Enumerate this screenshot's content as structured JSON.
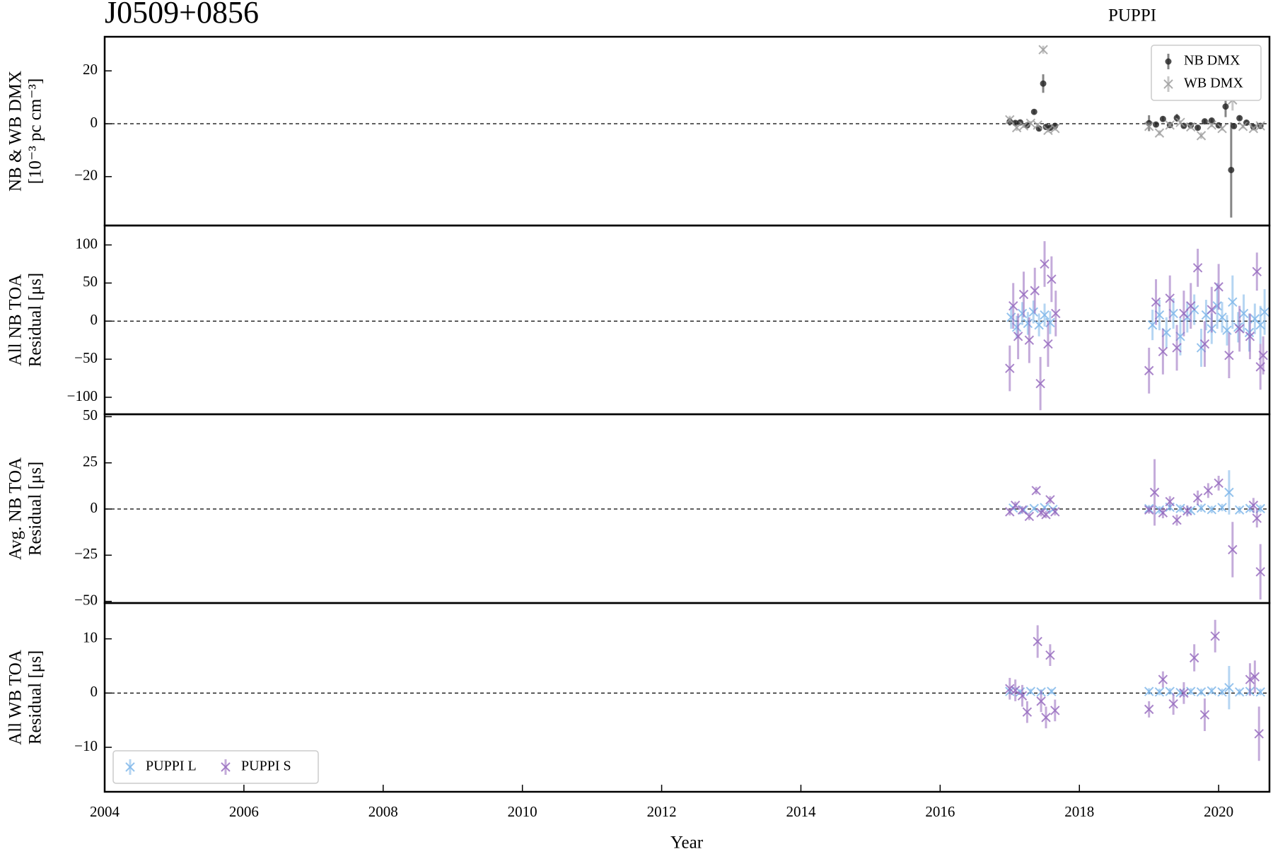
{
  "chart_data": [
    {
      "type": "scatter",
      "title": "J0509+0856",
      "subtitle": "PUPPI",
      "ylabel": [
        "NB & WB DMX",
        "[10⁻³ pc cm⁻³]"
      ],
      "xlim": [
        2004,
        2020.73
      ],
      "ylim": [
        -38.5,
        32.9
      ],
      "yticks": [
        {
          "value": -20,
          "label": "−20"
        },
        0,
        20
      ],
      "hline": 0,
      "legend": "upper right",
      "legend_ncol": 1,
      "series": [
        {
          "name": "NB DMX",
          "color": "#222222",
          "marker": "o",
          "x": [
            2017.0,
            2017.08,
            2017.15,
            2017.25,
            2017.35,
            2017.42,
            2017.48,
            2017.52,
            2017.58,
            2017.65,
            2019.0,
            2019.1,
            2019.2,
            2019.3,
            2019.4,
            2019.5,
            2019.6,
            2019.7,
            2019.8,
            2019.9,
            2020.0,
            2020.1,
            2020.18,
            2020.22,
            2020.3,
            2020.4,
            2020.5,
            2020.6
          ],
          "values": [
            0.8,
            0.3,
            0.5,
            -0.6,
            4.5,
            -1.8,
            15.2,
            -1.2,
            -1.5,
            -0.8,
            0.2,
            -0.3,
            1.8,
            -0.5,
            2.2,
            -0.8,
            -0.6,
            -1.5,
            0.9,
            1.2,
            -0.6,
            6.5,
            -17.5,
            -0.9,
            2.1,
            0.4,
            -1.2,
            -0.8
          ],
          "errors": [
            1.5,
            0.8,
            0.8,
            0.8,
            0.8,
            0.8,
            3.5,
            0.8,
            1.0,
            0.8,
            3,
            0.8,
            0.8,
            0.8,
            1.5,
            0.8,
            0.8,
            0.8,
            0.8,
            0.8,
            0.8,
            4,
            18,
            0.8,
            0.8,
            0.8,
            0.8,
            0.8
          ]
        },
        {
          "name": "WB DMX",
          "color": "#9a9a9a",
          "marker": "x",
          "x": [
            2017.0,
            2017.1,
            2017.2,
            2017.3,
            2017.4,
            2017.48,
            2017.55,
            2017.65,
            2019.0,
            2019.15,
            2019.3,
            2019.45,
            2019.6,
            2019.75,
            2019.9,
            2020.05,
            2020.2,
            2020.35,
            2020.5,
            2020.6
          ],
          "values": [
            1.5,
            -1.5,
            -0.8,
            0.2,
            -0.5,
            28,
            -2.5,
            -1.8,
            -1.0,
            -3.5,
            -0.5,
            0.5,
            -1.2,
            -4.5,
            -0.5,
            -1.8,
            9,
            -1.0,
            -1.8,
            -0.8
          ],
          "errors": [
            1.5,
            1.2,
            0.8,
            0.8,
            0.8,
            1.5,
            0.8,
            0.8,
            1.5,
            1.0,
            0.8,
            0.8,
            0.8,
            1.2,
            0.8,
            0.8,
            4,
            0.8,
            0.8,
            0.8
          ]
        }
      ]
    },
    {
      "type": "scatter",
      "ylabel": [
        "All NB TOA",
        "Residual [μs]"
      ],
      "xlim": [
        2004,
        2020.73
      ],
      "ylim": [
        -122.3,
        125.5
      ],
      "yticks": [
        {
          "value": -100,
          "label": "−100"
        },
        {
          "value": -50,
          "label": "−50"
        },
        0,
        50,
        100
      ],
      "hline": 0,
      "series": [
        {
          "color": "#7ab4e8",
          "marker": "x",
          "x": [
            2017.02,
            2017.1,
            2017.18,
            2017.26,
            2017.34,
            2017.42,
            2017.5,
            2017.58,
            2019.05,
            2019.15,
            2019.25,
            2019.35,
            2019.45,
            2019.55,
            2019.65,
            2019.75,
            2019.82,
            2019.9,
            2019.98,
            2020.05,
            2020.12,
            2020.2,
            2020.28,
            2020.36,
            2020.44,
            2020.52,
            2020.6,
            2020.66
          ],
          "values": [
            5,
            -8,
            10,
            -3,
            12,
            -5,
            8,
            -2,
            -5,
            8,
            -15,
            10,
            -20,
            5,
            15,
            -35,
            8,
            -10,
            20,
            5,
            -12,
            25,
            -8,
            10,
            -15,
            3,
            -5,
            12
          ],
          "errors": [
            15,
            15,
            15,
            15,
            15,
            15,
            15,
            15,
            20,
            20,
            20,
            20,
            25,
            20,
            20,
            25,
            20,
            20,
            30,
            20,
            20,
            35,
            20,
            25,
            25,
            20,
            25,
            30
          ]
        },
        {
          "color": "#9467bd",
          "marker": "x",
          "x": [
            2017.0,
            2017.05,
            2017.12,
            2017.2,
            2017.28,
            2017.36,
            2017.44,
            2017.5,
            2017.55,
            2017.6,
            2017.66,
            2019.0,
            2019.1,
            2019.2,
            2019.3,
            2019.4,
            2019.5,
            2019.6,
            2019.7,
            2019.8,
            2019.9,
            2020.0,
            2020.15,
            2020.3,
            2020.45,
            2020.55,
            2020.6,
            2020.64
          ],
          "values": [
            -62,
            20,
            -20,
            35,
            -25,
            40,
            -82,
            75,
            -30,
            55,
            10,
            -65,
            25,
            -40,
            30,
            -35,
            10,
            20,
            70,
            -30,
            15,
            45,
            -45,
            -10,
            -20,
            65,
            -60,
            -45
          ],
          "errors": [
            30,
            30,
            30,
            30,
            30,
            30,
            35,
            30,
            30,
            30,
            30,
            30,
            30,
            30,
            30,
            30,
            30,
            30,
            25,
            30,
            30,
            30,
            30,
            30,
            30,
            25,
            30,
            25
          ]
        }
      ]
    },
    {
      "type": "scatter",
      "ylabel": [
        "Avg. NB TOA",
        "Residual [μs]"
      ],
      "xlim": [
        2004,
        2020.73
      ],
      "ylim": [
        -50.9,
        51.3
      ],
      "yticks": [
        {
          "value": -50,
          "label": "−50"
        },
        {
          "value": -25,
          "label": "−25"
        },
        0,
        25,
        50
      ],
      "hline": 0,
      "series": [
        {
          "color": "#7ab4e8",
          "marker": "x",
          "x": [
            2017.05,
            2017.2,
            2017.35,
            2017.5,
            2017.62,
            2019.0,
            2019.15,
            2019.3,
            2019.45,
            2019.6,
            2019.75,
            2019.9,
            2020.05,
            2020.15,
            2020.3,
            2020.45,
            2020.6
          ],
          "values": [
            0.5,
            -0.5,
            0.3,
            0.8,
            -0.2,
            0.2,
            -0.5,
            1,
            0.3,
            -0.8,
            0.5,
            -0.3,
            0.8,
            9,
            -0.5,
            0.3,
            0.2
          ],
          "errors": [
            1,
            1,
            1,
            1,
            1,
            2,
            2,
            2,
            2,
            2,
            2,
            2,
            2,
            12,
            2,
            2,
            2
          ]
        },
        {
          "color": "#9467bd",
          "marker": "x",
          "x": [
            2017.0,
            2017.08,
            2017.18,
            2017.28,
            2017.38,
            2017.45,
            2017.52,
            2017.58,
            2017.65,
            2019.0,
            2019.08,
            2019.2,
            2019.3,
            2019.4,
            2019.55,
            2019.7,
            2019.85,
            2020.0,
            2020.2,
            2020.5,
            2020.55,
            2020.6
          ],
          "values": [
            -1.5,
            2,
            -0.5,
            -4,
            10,
            -2,
            -3,
            5,
            -1.5,
            -0.5,
            9,
            -2,
            4,
            -6,
            -1,
            6,
            10,
            14,
            -22,
            2,
            -5,
            -34
          ],
          "errors": [
            2,
            2,
            2,
            2,
            2,
            2,
            2,
            2,
            2,
            2,
            18,
            3,
            3,
            3,
            3,
            4,
            4,
            4,
            15,
            4,
            5,
            15
          ]
        }
      ]
    },
    {
      "type": "scatter",
      "ylabel": [
        "All WB TOA",
        "Residual [μs]"
      ],
      "xlabel": "Year",
      "xlim": [
        2004,
        2020.73
      ],
      "ylim": [
        -18.2,
        16.6
      ],
      "xticks": [
        2004,
        2006,
        2008,
        2010,
        2012,
        2014,
        2016,
        2018,
        2020
      ],
      "yticks": [
        {
          "value": -10,
          "label": "−10"
        },
        0,
        10
      ],
      "hline": 0,
      "legend": "lower left",
      "legend_ncol": 2,
      "series": [
        {
          "name": "PUPPI L",
          "color": "#7ab4e8",
          "marker": "x",
          "x": [
            2017.0,
            2017.15,
            2017.3,
            2017.45,
            2017.6,
            2019.0,
            2019.15,
            2019.3,
            2019.45,
            2019.6,
            2019.75,
            2019.9,
            2020.05,
            2020.15,
            2020.3,
            2020.45,
            2020.6
          ],
          "values": [
            0.3,
            0.2,
            0.3,
            0.2,
            0.3,
            0.3,
            0.2,
            0.3,
            0.1,
            0.3,
            0.2,
            0.4,
            0.2,
            1.0,
            0.2,
            0.3,
            0.2
          ],
          "errors": [
            0.5,
            0.5,
            0.5,
            0.5,
            0.5,
            0.6,
            0.6,
            0.6,
            0.6,
            0.6,
            0.6,
            0.6,
            0.6,
            4,
            0.6,
            0.6,
            0.6
          ]
        },
        {
          "name": "PUPPI S",
          "color": "#9467bd",
          "marker": "x",
          "x": [
            2017.0,
            2017.08,
            2017.18,
            2017.25,
            2017.4,
            2017.45,
            2017.52,
            2017.58,
            2017.65,
            2019.0,
            2019.2,
            2019.35,
            2019.5,
            2019.65,
            2019.8,
            2019.95,
            2020.45,
            2020.52,
            2020.58
          ],
          "values": [
            0.8,
            0.5,
            -0.5,
            -3.5,
            9.5,
            -1.5,
            -4.5,
            7,
            -3.2,
            -3,
            2.5,
            -2,
            0,
            6.5,
            -4,
            10.5,
            2.5,
            3,
            -7.5
          ],
          "errors": [
            2,
            2,
            2,
            2,
            3,
            2,
            2,
            2,
            2,
            1.5,
            1.5,
            2,
            2,
            2.5,
            3,
            3,
            3,
            3,
            5
          ]
        }
      ]
    }
  ]
}
